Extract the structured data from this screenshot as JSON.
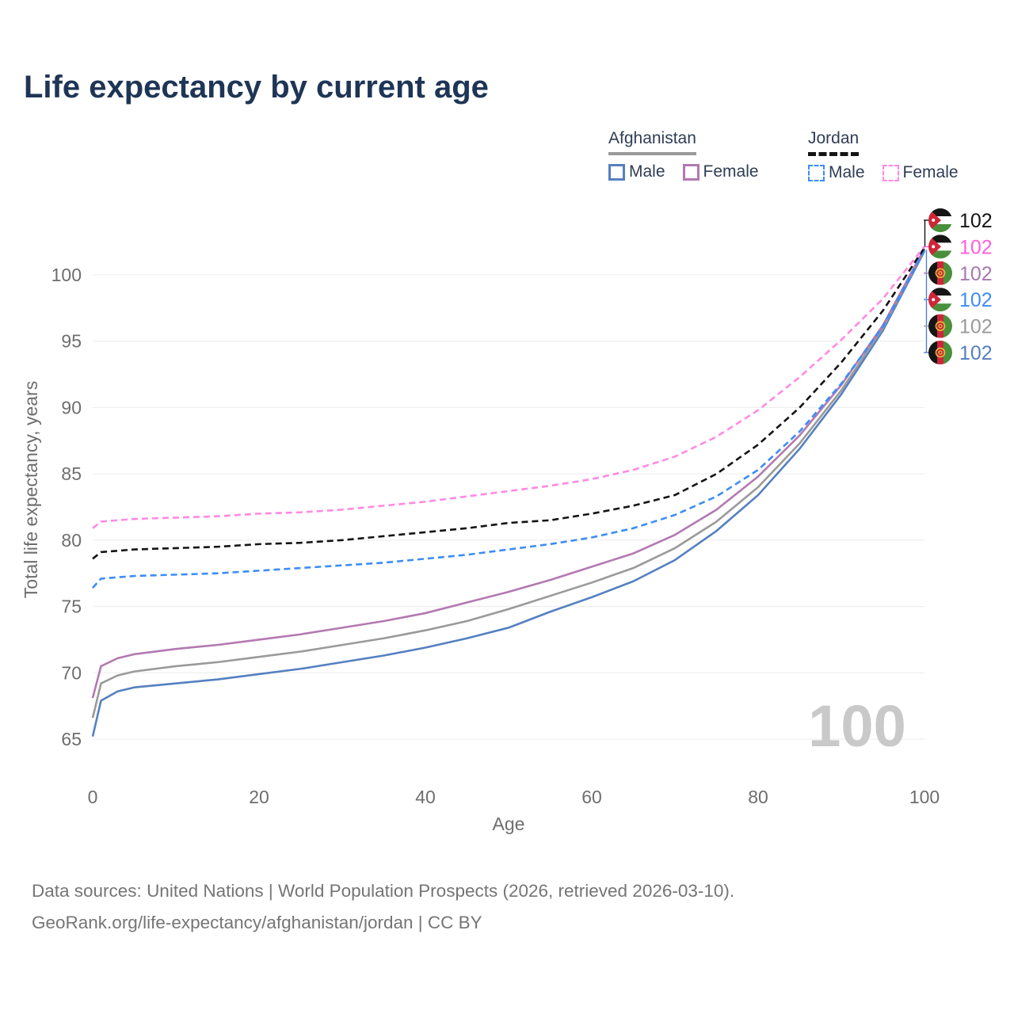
{
  "chart_data": {
    "type": "line",
    "title": "Life expectancy by current age",
    "xlabel": "Age",
    "ylabel": "Total life expectancy, years",
    "xlim": [
      0,
      100
    ],
    "ylim": [
      65,
      102.5
    ],
    "xticks": [
      0,
      20,
      40,
      60,
      80,
      100
    ],
    "yticks": [
      65,
      70,
      75,
      80,
      85,
      90,
      95,
      100
    ],
    "grid": true,
    "watermark": "100",
    "legend_position": "top-right",
    "x": [
      0,
      1,
      3,
      5,
      10,
      15,
      20,
      25,
      30,
      35,
      40,
      45,
      50,
      55,
      60,
      65,
      70,
      75,
      80,
      85,
      90,
      95,
      100
    ],
    "series": [
      {
        "id": "afghanistan-male",
        "name": "Afghanistan Male",
        "color": "#5580c1",
        "dash": false,
        "values": [
          65.2,
          67.9,
          68.6,
          68.9,
          69.2,
          69.5,
          69.9,
          70.3,
          70.8,
          71.3,
          71.9,
          72.6,
          73.4,
          74.6,
          75.7,
          76.9,
          78.5,
          80.7,
          83.4,
          86.9,
          91.0,
          95.8,
          101.8
        ]
      },
      {
        "id": "afghanistan-both",
        "name": "Afghanistan",
        "color": "#9a9a9a",
        "dash": false,
        "values": [
          66.6,
          69.2,
          69.8,
          70.1,
          70.5,
          70.8,
          71.2,
          71.6,
          72.1,
          72.6,
          73.2,
          73.9,
          74.8,
          75.8,
          76.8,
          77.9,
          79.4,
          81.4,
          84.0,
          87.3,
          91.3,
          96.0,
          101.95
        ]
      },
      {
        "id": "afghanistan-female",
        "name": "Afghanistan Female",
        "color": "#b379b1",
        "dash": false,
        "values": [
          68.1,
          70.5,
          71.1,
          71.4,
          71.8,
          72.1,
          72.5,
          72.9,
          73.4,
          73.9,
          74.5,
          75.3,
          76.1,
          77.0,
          78.0,
          79.0,
          80.4,
          82.3,
          84.8,
          87.9,
          91.7,
          96.2,
          102.0
        ]
      },
      {
        "id": "jordan-male",
        "name": "Jordan Male",
        "color": "#3d8df5",
        "dash": true,
        "values": [
          76.4,
          77.1,
          77.2,
          77.3,
          77.4,
          77.5,
          77.7,
          77.9,
          78.1,
          78.3,
          78.6,
          78.9,
          79.3,
          79.7,
          80.2,
          80.9,
          81.9,
          83.3,
          85.3,
          88.2,
          91.8,
          96.1,
          101.85
        ]
      },
      {
        "id": "jordan-both",
        "name": "Jordan",
        "color": "#141414",
        "dash": true,
        "values": [
          78.6,
          79.1,
          79.2,
          79.3,
          79.4,
          79.5,
          79.7,
          79.8,
          80.0,
          80.3,
          80.6,
          80.9,
          81.3,
          81.5,
          82.0,
          82.6,
          83.4,
          85.0,
          87.2,
          90.0,
          93.4,
          97.3,
          102.05
        ]
      },
      {
        "id": "jordan-female",
        "name": "Jordan Female",
        "color": "#ff8ae4",
        "dash": true,
        "values": [
          80.9,
          81.4,
          81.5,
          81.6,
          81.7,
          81.8,
          82.0,
          82.1,
          82.3,
          82.6,
          82.9,
          83.3,
          83.7,
          84.1,
          84.6,
          85.3,
          86.3,
          87.8,
          89.8,
          92.3,
          95.1,
          98.2,
          102.15
        ]
      }
    ],
    "end_labels": [
      {
        "flag": "jordan",
        "value": "102",
        "color": "#141414",
        "series": "jordan-both"
      },
      {
        "flag": "jordan",
        "value": "102",
        "color": "#ff5fdb",
        "series": "jordan-female"
      },
      {
        "flag": "afghanistan",
        "value": "102",
        "color": "#a878b0",
        "series": "afghanistan-female"
      },
      {
        "flag": "jordan",
        "value": "102",
        "color": "#3d8df5",
        "series": "jordan-male"
      },
      {
        "flag": "afghanistan",
        "value": "102",
        "color": "#9a9a9a",
        "series": "afghanistan-both"
      },
      {
        "flag": "afghanistan",
        "value": "102",
        "color": "#5580c1",
        "series": "afghanistan-male"
      }
    ]
  },
  "legend": {
    "groups": [
      {
        "country": "Afghanistan",
        "line_style": "solid",
        "underline_color": "#9a9a9a",
        "items": [
          {
            "label": "Male",
            "color": "#5580c1"
          },
          {
            "label": "Female",
            "color": "#b379b1"
          }
        ]
      },
      {
        "country": "Jordan",
        "line_style": "dashed",
        "underline_color": "#141414",
        "items": [
          {
            "label": "Male",
            "color": "#3d8df5"
          },
          {
            "label": "Female",
            "color": "#ff8ae4"
          }
        ]
      }
    ]
  },
  "footer": {
    "line1": "Data sources: United Nations | World Population Prospects (2026, retrieved 2026-03-10).",
    "line2": "GeoRank.org/life-expectancy/afghanistan/jordan | CC BY"
  }
}
